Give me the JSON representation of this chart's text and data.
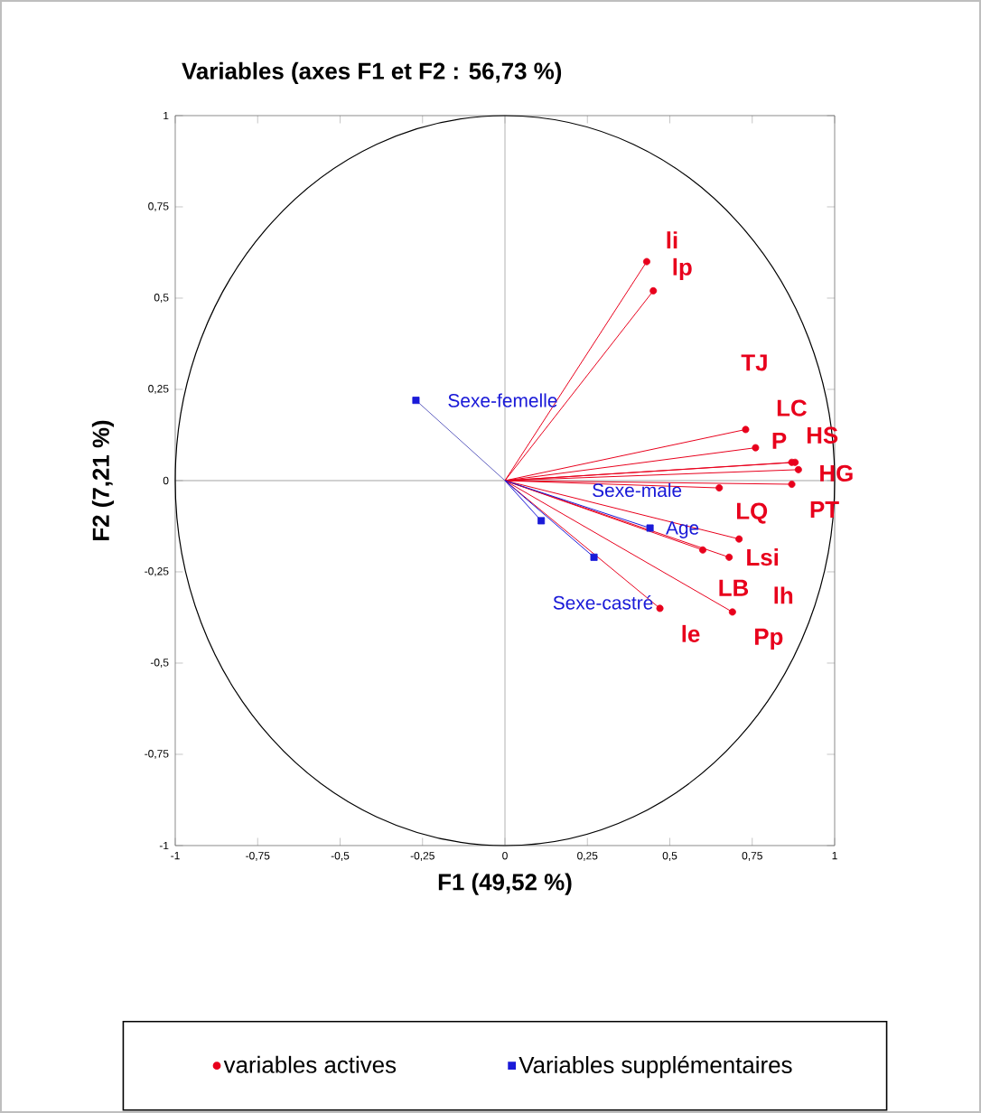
{
  "chart_data": {
    "type": "scatter",
    "title": "Variables (axes F1 et F2 : 56,73 %)",
    "xlabel": "F1 (49,52 %)",
    "ylabel": "F2 (7,21 %)",
    "xlim": [
      -1,
      1
    ],
    "ylim": [
      -1,
      1
    ],
    "xticks": [
      -1,
      {
        "value": -0.75,
        "label": "-0,75"
      },
      {
        "value": -0.5,
        "label": "-0,5"
      },
      {
        "value": -0.25,
        "label": "-0,25"
      },
      0,
      {
        "value": 0.25,
        "label": "0,25"
      },
      {
        "value": 0.5,
        "label": "0,5"
      },
      {
        "value": 0.75,
        "label": "0,75"
      },
      1
    ],
    "yticks": [
      -1,
      {
        "value": -0.75,
        "label": "-0,75"
      },
      {
        "value": -0.5,
        "label": "-0,5"
      },
      {
        "value": -0.25,
        "label": "-0,25"
      },
      0,
      {
        "value": 0.25,
        "label": "0,25"
      },
      {
        "value": 0.5,
        "label": "0,5"
      },
      {
        "value": 0.75,
        "label": "0,75"
      },
      1
    ],
    "ref_lines": [
      {
        "axis": "x",
        "value": 0,
        "color": "#a0a0a0"
      },
      {
        "axis": "y",
        "value": 0,
        "color": "#8c8c8c"
      }
    ],
    "series": [
      {
        "name": "variables actives",
        "color": "#e8001c",
        "marker": "circle",
        "x": [
          0.43,
          0.45,
          0.73,
          0.76,
          0.88,
          0.87,
          0.89,
          0.87,
          0.65,
          0.71,
          0.6,
          0.68,
          0.69,
          0.47
        ],
        "values": [
          0.6,
          0.52,
          0.14,
          0.09,
          0.05,
          0.05,
          0.03,
          -0.01,
          -0.02,
          -0.16,
          -0.19,
          -0.21,
          -0.36,
          -0.35
        ]
      },
      {
        "name": "Variables supplémentaires",
        "color": "#1a1ad8",
        "marker": "square",
        "x": [
          -0.27,
          0.11,
          0.44,
          0.27
        ],
        "values": [
          0.22,
          -0.11,
          -0.13,
          -0.21
        ]
      },
      {
        "type": "line",
        "color": "#e8001c",
        "marker": "none",
        "x": [
          0,
          0.43
        ],
        "values": [
          0,
          0.6
        ]
      },
      {
        "type": "line",
        "color": "#e8001c",
        "marker": "none",
        "x": [
          0,
          0.45
        ],
        "values": [
          0,
          0.52
        ]
      },
      {
        "type": "line",
        "color": "#e8001c",
        "marker": "none",
        "x": [
          0,
          0.73
        ],
        "values": [
          0,
          0.14
        ]
      },
      {
        "type": "line",
        "color": "#e8001c",
        "marker": "none",
        "x": [
          0,
          0.76
        ],
        "values": [
          0,
          0.09
        ]
      },
      {
        "type": "line",
        "color": "#e8001c",
        "marker": "none",
        "x": [
          0,
          0.88
        ],
        "values": [
          0,
          0.05
        ]
      },
      {
        "type": "line",
        "color": "#e8001c",
        "marker": "none",
        "x": [
          0,
          0.87
        ],
        "values": [
          0,
          0.05
        ]
      },
      {
        "type": "line",
        "color": "#e8001c",
        "marker": "none",
        "x": [
          0,
          0.89
        ],
        "values": [
          0,
          0.03
        ]
      },
      {
        "type": "line",
        "color": "#e8001c",
        "marker": "none",
        "x": [
          0,
          0.87
        ],
        "values": [
          0,
          -0.01
        ]
      },
      {
        "type": "line",
        "color": "#e8001c",
        "marker": "none",
        "x": [
          0,
          0.65
        ],
        "values": [
          0,
          -0.02
        ]
      },
      {
        "type": "line",
        "color": "#e8001c",
        "marker": "none",
        "x": [
          0,
          0.71
        ],
        "values": [
          0,
          -0.16
        ]
      },
      {
        "type": "line",
        "color": "#e8001c",
        "marker": "none",
        "x": [
          0,
          0.6
        ],
        "values": [
          0,
          -0.19
        ]
      },
      {
        "type": "line",
        "color": "#e8001c",
        "marker": "none",
        "x": [
          0,
          0.68
        ],
        "values": [
          0,
          -0.21
        ]
      },
      {
        "type": "line",
        "color": "#e8001c",
        "marker": "none",
        "x": [
          0,
          0.69
        ],
        "values": [
          0,
          -0.36
        ]
      },
      {
        "type": "line",
        "color": "#e8001c",
        "marker": "none",
        "x": [
          0,
          0.47
        ],
        "values": [
          0,
          -0.35
        ]
      },
      {
        "type": "line",
        "color": "#6060c0",
        "marker": "none",
        "x": [
          0,
          -0.27
        ],
        "values": [
          0,
          0.22
        ]
      },
      {
        "type": "line",
        "color": "#1a1ad8",
        "marker": "none",
        "x": [
          0,
          0.11
        ],
        "values": [
          0,
          -0.11
        ]
      },
      {
        "type": "line",
        "color": "#1a1ad8",
        "marker": "none",
        "x": [
          0,
          0.44
        ],
        "values": [
          0,
          -0.13
        ]
      },
      {
        "type": "line",
        "color": "#1a1ad8",
        "marker": "none",
        "x": [
          0,
          0.27
        ],
        "values": [
          0,
          -0.21
        ]
      }
    ],
    "annotations": [
      {
        "text": "li",
        "x": 0.43,
        "y": 0.6
      },
      {
        "text": "lp",
        "x": 0.45,
        "y": 0.52
      },
      {
        "text": "TJ",
        "x": 0.73,
        "y": 0.14
      },
      {
        "text": "LC",
        "x": 0.76,
        "y": 0.09
      },
      {
        "text": "HS",
        "x": 0.88,
        "y": 0.05
      },
      {
        "text": "P",
        "x": 0.87,
        "y": 0.05
      },
      {
        "text": "HG",
        "x": 0.89,
        "y": 0.03
      },
      {
        "text": "PT",
        "x": 0.87,
        "y": -0.01
      },
      {
        "text": "LQ",
        "x": 0.65,
        "y": -0.02
      },
      {
        "text": "Lsi",
        "x": 0.71,
        "y": -0.16
      },
      {
        "text": "LB",
        "x": 0.6,
        "y": -0.19
      },
      {
        "text": "lh",
        "x": 0.68,
        "y": -0.21
      },
      {
        "text": "Pp",
        "x": 0.69,
        "y": -0.36
      },
      {
        "text": "le",
        "x": 0.47,
        "y": -0.35
      },
      {
        "text": "Sexe-femelle",
        "x": -0.27,
        "y": 0.22
      },
      {
        "text": "Sexe-male",
        "x": 0.11,
        "y": -0.11
      },
      {
        "text": "Age",
        "x": 0.44,
        "y": -0.13
      },
      {
        "text": "Sexe-castré",
        "x": 0.27,
        "y": -0.21
      }
    ],
    "grid": false,
    "legend": "bottom"
  }
}
